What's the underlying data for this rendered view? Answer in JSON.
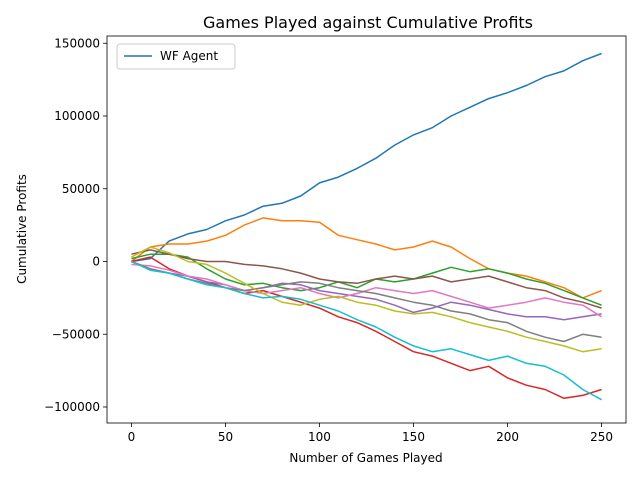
{
  "chart_data": {
    "type": "line",
    "title": "Games Played against Cumulative Profits",
    "xlabel": "Number of Games Played",
    "ylabel": "Cumulative Profits",
    "xlim": [
      -13,
      263
    ],
    "ylim": [
      -111000,
      155000
    ],
    "xticks": [
      0,
      50,
      100,
      150,
      200,
      250
    ],
    "xtick_labels": [
      "0",
      "50",
      "100",
      "150",
      "200",
      "250"
    ],
    "yticks": [
      -100000,
      -50000,
      0,
      50000,
      100000,
      150000
    ],
    "ytick_labels": [
      "−100000",
      "−50000",
      "0",
      "50000",
      "100000",
      "150000"
    ],
    "legend": {
      "position": "upper-left",
      "entries": [
        "WF Agent"
      ]
    },
    "grid": false,
    "series": [
      {
        "name": "WF Agent",
        "color": "#1f77b4",
        "x": [
          0,
          10,
          20,
          30,
          40,
          50,
          60,
          70,
          80,
          90,
          100,
          110,
          120,
          130,
          140,
          150,
          160,
          170,
          180,
          190,
          200,
          210,
          220,
          230,
          240,
          250
        ],
        "y": [
          0,
          2000,
          14000,
          19000,
          22000,
          28000,
          32000,
          38000,
          40000,
          45000,
          54000,
          58000,
          64000,
          71000,
          80000,
          87000,
          92000,
          100000,
          106000,
          112000,
          116000,
          121000,
          127000,
          131000,
          138000,
          143000
        ]
      },
      {
        "name": "",
        "color": "#ff7f0e",
        "x": [
          0,
          10,
          20,
          30,
          40,
          50,
          60,
          70,
          80,
          90,
          100,
          110,
          120,
          130,
          140,
          150,
          160,
          170,
          180,
          190,
          200,
          210,
          220,
          230,
          240,
          250
        ],
        "y": [
          0,
          10000,
          12000,
          12000,
          14000,
          18000,
          25000,
          30000,
          28000,
          28000,
          27000,
          18000,
          15000,
          12000,
          8000,
          10000,
          14000,
          10000,
          2000,
          -5000,
          -8000,
          -10000,
          -14000,
          -18000,
          -25000,
          -20000
        ]
      },
      {
        "name": "",
        "color": "#2ca02c",
        "x": [
          0,
          10,
          20,
          30,
          40,
          50,
          60,
          70,
          80,
          90,
          100,
          110,
          120,
          130,
          140,
          150,
          160,
          170,
          180,
          190,
          200,
          210,
          220,
          230,
          240,
          250
        ],
        "y": [
          2000,
          5000,
          5000,
          3000,
          -5000,
          -12000,
          -16000,
          -15000,
          -18000,
          -20000,
          -18000,
          -14000,
          -18000,
          -12000,
          -14000,
          -12000,
          -8000,
          -4000,
          -7000,
          -5000,
          -8000,
          -12000,
          -15000,
          -20000,
          -25000,
          -30000
        ]
      },
      {
        "name": "",
        "color": "#d62728",
        "x": [
          0,
          10,
          20,
          30,
          40,
          50,
          60,
          70,
          80,
          90,
          100,
          110,
          120,
          130,
          140,
          150,
          160,
          170,
          180,
          190,
          200,
          210,
          220,
          230,
          240,
          250
        ],
        "y": [
          0,
          3000,
          -5000,
          -10000,
          -14000,
          -18000,
          -22000,
          -20000,
          -24000,
          -28000,
          -32000,
          -38000,
          -42000,
          -48000,
          -55000,
          -62000,
          -65000,
          -70000,
          -75000,
          -72000,
          -80000,
          -85000,
          -88000,
          -94000,
          -92000,
          -88000
        ]
      },
      {
        "name": "",
        "color": "#9467bd",
        "x": [
          0,
          10,
          20,
          30,
          40,
          50,
          60,
          70,
          80,
          90,
          100,
          110,
          120,
          130,
          140,
          150,
          160,
          170,
          180,
          190,
          200,
          210,
          220,
          230,
          240,
          250
        ],
        "y": [
          0,
          -5000,
          -8000,
          -10000,
          -14000,
          -16000,
          -20000,
          -18000,
          -15000,
          -16000,
          -20000,
          -22000,
          -24000,
          -26000,
          -30000,
          -35000,
          -32000,
          -28000,
          -30000,
          -33000,
          -36000,
          -38000,
          -38000,
          -40000,
          -38000,
          -36000
        ]
      },
      {
        "name": "",
        "color": "#8c564b",
        "x": [
          0,
          10,
          20,
          30,
          40,
          50,
          60,
          70,
          80,
          90,
          100,
          110,
          120,
          130,
          140,
          150,
          160,
          170,
          180,
          190,
          200,
          210,
          220,
          230,
          240,
          250
        ],
        "y": [
          5000,
          8000,
          5000,
          2000,
          0,
          0,
          -2000,
          -3000,
          -5000,
          -8000,
          -12000,
          -14000,
          -15000,
          -12000,
          -10000,
          -12000,
          -10000,
          -14000,
          -12000,
          -10000,
          -14000,
          -18000,
          -20000,
          -25000,
          -28000,
          -32000
        ]
      },
      {
        "name": "",
        "color": "#e377c2",
        "x": [
          0,
          10,
          20,
          30,
          40,
          50,
          60,
          70,
          80,
          90,
          100,
          110,
          120,
          130,
          140,
          150,
          160,
          170,
          180,
          190,
          200,
          210,
          220,
          230,
          240,
          250
        ],
        "y": [
          -2000,
          -3000,
          -6000,
          -10000,
          -12000,
          -16000,
          -20000,
          -22000,
          -20000,
          -18000,
          -22000,
          -25000,
          -22000,
          -18000,
          -20000,
          -22000,
          -20000,
          -24000,
          -28000,
          -32000,
          -30000,
          -28000,
          -25000,
          -28000,
          -30000,
          -38000
        ]
      },
      {
        "name": "",
        "color": "#7f7f7f",
        "x": [
          0,
          10,
          20,
          30,
          40,
          50,
          60,
          70,
          80,
          90,
          100,
          110,
          120,
          130,
          140,
          150,
          160,
          170,
          180,
          190,
          200,
          210,
          220,
          230,
          240,
          250
        ],
        "y": [
          0,
          -5000,
          -8000,
          -12000,
          -15000,
          -18000,
          -20000,
          -18000,
          -16000,
          -14000,
          -15000,
          -18000,
          -20000,
          -22000,
          -25000,
          -28000,
          -30000,
          -34000,
          -36000,
          -40000,
          -42000,
          -48000,
          -52000,
          -55000,
          -50000,
          -52000
        ]
      },
      {
        "name": "",
        "color": "#bcbd22",
        "x": [
          0,
          10,
          20,
          30,
          40,
          50,
          60,
          70,
          80,
          90,
          100,
          110,
          120,
          130,
          140,
          150,
          160,
          170,
          180,
          190,
          200,
          210,
          220,
          230,
          240,
          250
        ],
        "y": [
          3000,
          10000,
          6000,
          0,
          -2000,
          -8000,
          -15000,
          -22000,
          -28000,
          -30000,
          -26000,
          -24000,
          -28000,
          -30000,
          -34000,
          -36000,
          -35000,
          -38000,
          -42000,
          -45000,
          -48000,
          -52000,
          -55000,
          -58000,
          -62000,
          -60000
        ]
      },
      {
        "name": "",
        "color": "#17becf",
        "x": [
          0,
          10,
          20,
          30,
          40,
          50,
          60,
          70,
          80,
          90,
          100,
          110,
          120,
          130,
          140,
          150,
          160,
          170,
          180,
          190,
          200,
          210,
          220,
          230,
          240,
          250
        ],
        "y": [
          0,
          -6000,
          -8000,
          -12000,
          -16000,
          -18000,
          -22000,
          -25000,
          -24000,
          -26000,
          -30000,
          -34000,
          -40000,
          -45000,
          -52000,
          -58000,
          -62000,
          -60000,
          -64000,
          -68000,
          -65000,
          -70000,
          -72000,
          -78000,
          -88000,
          -95000
        ]
      }
    ]
  }
}
